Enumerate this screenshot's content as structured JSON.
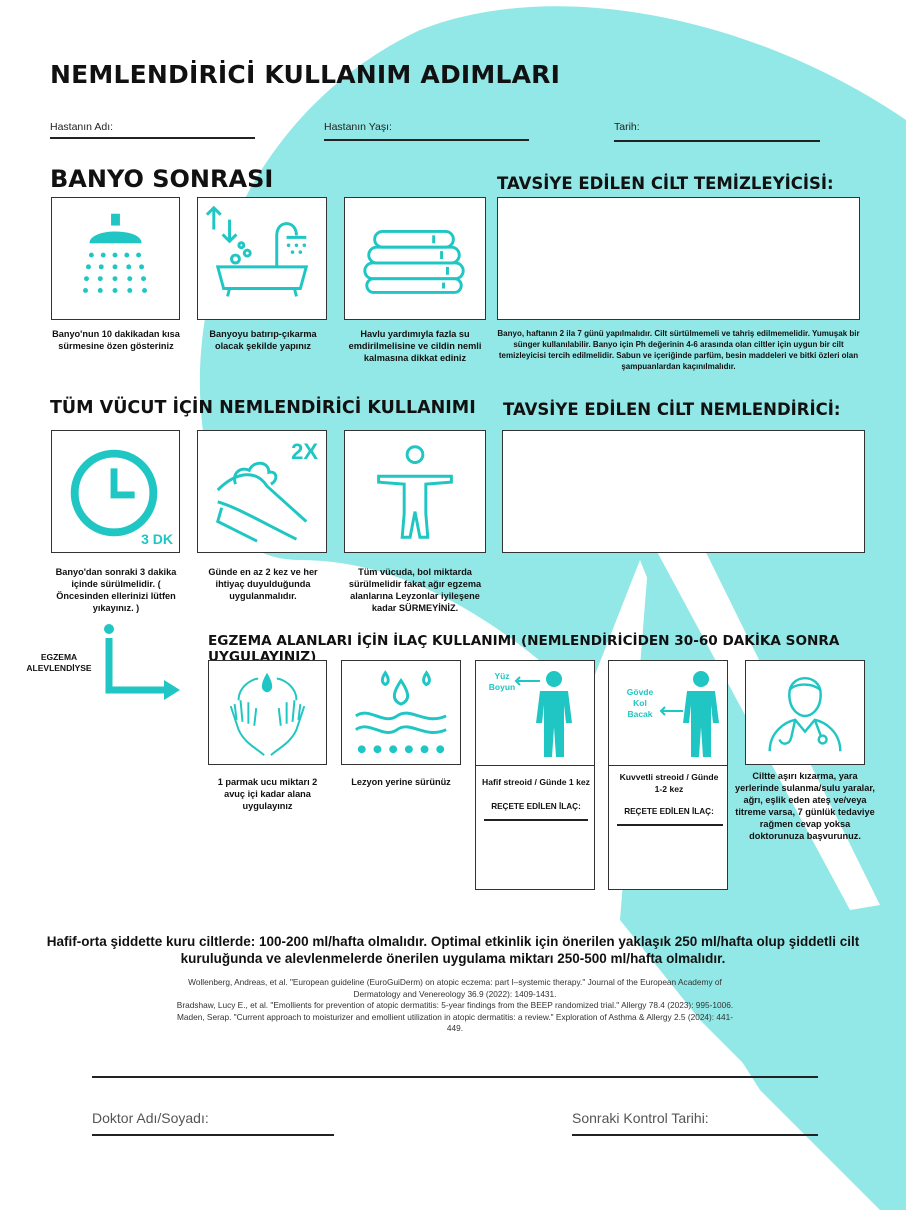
{
  "title": "NEMLENDİRİCİ KULLANIM ADIMLARI",
  "fields": {
    "patient_name": "Hastanın Adı:",
    "patient_age": "Hastanın Yaşı:",
    "date": "Tarih:"
  },
  "bath": {
    "heading": "BANYO SONRASI",
    "cleanser_heading": "TAVSİYE EDİLEN CİLT TEMİZLEYİCİSİ:",
    "steps": [
      {
        "caption": "Banyo'nun 10 dakikadan kısa sürmesine özen gösteriniz",
        "icon": "shower-icon"
      },
      {
        "caption": "Banyoyu batırıp-çıkarma olacak şekilde yapınız",
        "icon": "bathtub-icon"
      },
      {
        "caption": "Havlu yardımıyla fazla su emdirilmelisine ve cildin nemli kalmasına dikkat ediniz",
        "icon": "towels-icon"
      }
    ],
    "cleanser_note": "Banyo, haftanın 2 ila 7 günü yapılmalıdır. Cilt sürtülmemeli ve tahriş edilmemelidir. Yumuşak bir sünger kullanılabilir. Banyo için Ph değerinin 4-6 arasında olan ciltler için uygun bir cilt temizleyicisi tercih edilmelidir. Sabun ve içeriğinde parfüm, besin maddeleri ve bitki özleri olan şampuanlardan kaçınılmalıdır."
  },
  "moisturizer": {
    "heading": "TÜM VÜCUT İÇİN NEMLENDİRİCİ KULLANIMI",
    "recommended_heading": "TAVSİYE EDİLEN CİLT NEMLENDİRİCİ:",
    "clock_label": "3 DK",
    "twice_label": "2X",
    "steps": [
      {
        "caption": "Banyo'dan sonraki 3 dakika içinde sürülmelidir. ( Öncesinden ellerinizi lütfen yıkayınız. )",
        "icon": "clock-icon"
      },
      {
        "caption": "Günde en az 2 kez ve her ihtiyaç duyulduğunda uygulanmalıdır.",
        "icon": "cream-hand-icon"
      },
      {
        "caption": "Tüm vücuda, bol miktarda sürülmelidir fakat ağır egzema alanlarına Leyzonlar iyileşene kadar SÜRMEYİNİZ.",
        "icon": "body-icon"
      }
    ]
  },
  "eczema": {
    "flare_label_1": "EGZEMA",
    "flare_label_2": "ALEVLENDİYSE",
    "heading": "EGZEMA ALANLARI İÇİN İLAÇ KULLANIMI (NEMLENDİRİCİDEN 30-60 DAKİKA SONRA UYGULAYINIZ)",
    "steps": [
      {
        "caption": "1 parmak ucu miktarı 2 avuç içi kadar alana uygulayınız",
        "icon": "hands-drop-icon"
      },
      {
        "caption": "Lezyon yerine sürünüz",
        "icon": "skin-drops-icon"
      },
      {
        "caption": "Hafif streoid / Günde 1 kez",
        "icon": "person-face-icon",
        "area_label_1": "Yüz",
        "area_label_2": "Boyun",
        "prescribed": "REÇETE EDİLEN İLAÇ:"
      },
      {
        "caption": "Kuvvetli streoid / Günde 1-2 kez",
        "icon": "person-body-icon",
        "area_label_1": "Gövde",
        "area_label_2": "Kol",
        "area_label_3": "Bacak",
        "prescribed": "REÇETE EDİLEN İLAÇ:"
      },
      {
        "caption": "Ciltte aşırı kızarma, yara yerlerinde sulanma/sulu yaralar, ağrı, eşlik eden ateş ve/veya titreme varsa, 7 günlük tedaviye rağmen cevap yoksa doktorunuza başvurunuz.",
        "icon": "doctor-icon"
      }
    ]
  },
  "dosage": "Hafif-orta şiddette kuru ciltlerde: 100-200 ml/hafta olmalıdır. Optimal etkinlik için önerilen yaklaşık 250 ml/hafta olup şiddetli cilt kuruluğunda ve alevlenmelerde önerilen uygulama miktarı 250-500 ml/hafta olmalıdır.",
  "references": [
    "Wollenberg, Andreas, et al. \"European guideline (EuroGuiDerm) on atopic eczema: part I–systemic therapy.\" Journal of the European Academy of Dermatology and Venereology 36.9 (2022): 1409-1431.",
    "Bradshaw, Lucy E., et al. \"Emollients for prevention of atopic dermatitis: 5-year findings from the BEEP randomized trial.\" Allergy 78.4 (2023): 995-1006.",
    "Maden, Serap. \"Current approach to moisturizer and emollient utilization in atopic dermatitis: a review.\" Exploration of Asthma & Allergy 2.5 (2024): 441-449."
  ],
  "signature": {
    "doctor": "Doktor Adı/Soyadı:",
    "next_visit": "Sonraki Kontrol Tarihi:"
  },
  "colors": {
    "accent": "#1fc6c3",
    "background_shape": "#92e8e6"
  }
}
